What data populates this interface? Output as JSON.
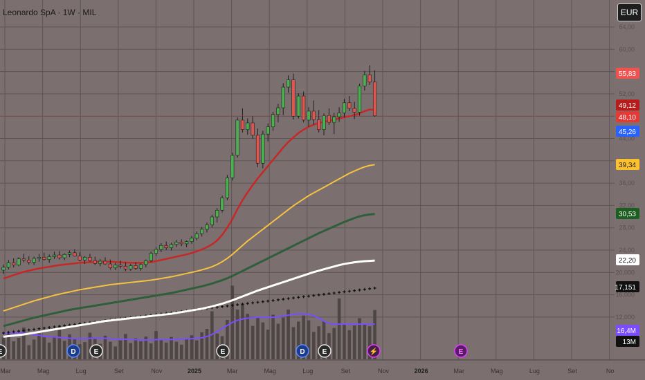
{
  "header": {
    "title": "Leonardo SpA · 1W · MIL",
    "currency": "EUR"
  },
  "chart_data": {
    "type": "candlestick",
    "y_ticks": [
      "64,00",
      "60,00",
      "56,00",
      "52,00",
      "48,00",
      "44,00",
      "40,00",
      "36,00",
      "32,00",
      "28,00",
      "24,00",
      "20,000",
      "16,000",
      "12,000"
    ],
    "x_ticks": [
      {
        "label": "Mar",
        "bold": false
      },
      {
        "label": "Mag",
        "bold": false
      },
      {
        "label": "Lug",
        "bold": false
      },
      {
        "label": "Set",
        "bold": false
      },
      {
        "label": "Nov",
        "bold": false
      },
      {
        "label": "2025",
        "bold": true
      },
      {
        "label": "Mar",
        "bold": false
      },
      {
        "label": "Mag",
        "bold": false
      },
      {
        "label": "Lug",
        "bold": false
      },
      {
        "label": "Set",
        "bold": false
      },
      {
        "label": "Nov",
        "bold": false
      },
      {
        "label": "2026",
        "bold": true
      },
      {
        "label": "Mar",
        "bold": false
      },
      {
        "label": "Mag",
        "bold": false
      },
      {
        "label": "Lug",
        "bold": false
      },
      {
        "label": "Set",
        "bold": false
      },
      {
        "label": "No",
        "bold": false
      }
    ],
    "price_tags": [
      {
        "label": "55,83",
        "bg": "#ef5350",
        "fg": "#ffffff"
      },
      {
        "label": "49,12",
        "bg": "#b71c1c",
        "fg": "#ffffff"
      },
      {
        "label": "48,10",
        "bg": "#e53935",
        "fg": "#ffffff"
      },
      {
        "label": "45,26",
        "bg": "#2962ff",
        "fg": "#ffffff"
      },
      {
        "label": "39,34",
        "bg": "#fbc02d",
        "fg": "#1a1a1a"
      },
      {
        "label": "30,53",
        "bg": "#1b5e20",
        "fg": "#ffffff"
      },
      {
        "label": "22,20",
        "bg": "#ffffff",
        "fg": "#1a1a1a"
      },
      {
        "label": "17,151",
        "bg": "#111111",
        "fg": "#ffffff"
      },
      {
        "label": "16,4M",
        "bg": "#7c4dff",
        "fg": "#ffffff"
      },
      {
        "label": "13M",
        "bg": "#111111",
        "fg": "#ffffff"
      }
    ],
    "events": [
      {
        "label": "E",
        "kind": "earnings"
      },
      {
        "label": "D",
        "kind": "dividend"
      },
      {
        "label": "E",
        "kind": "earnings"
      },
      {
        "label": "E",
        "kind": "earnings"
      },
      {
        "label": "D",
        "kind": "dividend"
      },
      {
        "label": "E",
        "kind": "earnings"
      },
      {
        "label": "⚡",
        "kind": "split"
      },
      {
        "label": "E",
        "kind": "earnings-future"
      }
    ],
    "ohlc": [
      [
        20.5,
        21.5,
        19.8,
        21.0
      ],
      [
        21.0,
        22.3,
        20.6,
        21.8
      ],
      [
        21.8,
        22.6,
        21.0,
        21.4
      ],
      [
        21.4,
        22.8,
        21.2,
        22.5
      ],
      [
        22.5,
        23.4,
        21.9,
        22.3
      ],
      [
        22.3,
        23.0,
        21.5,
        21.9
      ],
      [
        21.9,
        22.9,
        21.4,
        22.6
      ],
      [
        22.6,
        23.4,
        22.0,
        22.8
      ],
      [
        22.8,
        23.6,
        22.2,
        22.4
      ],
      [
        22.4,
        23.3,
        21.8,
        22.9
      ],
      [
        22.9,
        23.8,
        22.5,
        23.2
      ],
      [
        23.2,
        23.9,
        22.4,
        22.7
      ],
      [
        22.7,
        23.5,
        22.3,
        23.3
      ],
      [
        23.3,
        24.0,
        22.8,
        23.6
      ],
      [
        23.6,
        24.2,
        22.9,
        23.0
      ],
      [
        23.0,
        23.7,
        22.1,
        22.3
      ],
      [
        22.3,
        23.0,
        21.6,
        22.8
      ],
      [
        22.8,
        23.4,
        22.0,
        22.2
      ],
      [
        22.2,
        22.9,
        21.4,
        21.7
      ],
      [
        21.7,
        22.5,
        21.2,
        22.1
      ],
      [
        22.1,
        22.8,
        21.5,
        21.6
      ],
      [
        21.6,
        22.4,
        20.6,
        20.9
      ],
      [
        20.9,
        21.8,
        20.5,
        21.4
      ],
      [
        21.4,
        22.2,
        20.8,
        21.2
      ],
      [
        21.2,
        21.9,
        20.3,
        20.7
      ],
      [
        20.7,
        21.6,
        20.4,
        21.3
      ],
      [
        21.3,
        21.9,
        20.5,
        20.8
      ],
      [
        20.8,
        21.7,
        20.4,
        21.5
      ],
      [
        21.5,
        22.4,
        21.0,
        22.2
      ],
      [
        22.2,
        23.8,
        21.9,
        23.5
      ],
      [
        23.5,
        24.6,
        23.0,
        24.2
      ],
      [
        24.2,
        25.3,
        23.7,
        24.9
      ],
      [
        24.9,
        25.6,
        24.1,
        24.5
      ],
      [
        24.5,
        25.4,
        24.0,
        25.1
      ],
      [
        25.1,
        25.9,
        24.6,
        25.5
      ],
      [
        25.5,
        26.0,
        24.8,
        25.2
      ],
      [
        25.2,
        25.8,
        24.6,
        25.6
      ],
      [
        25.6,
        26.6,
        25.2,
        26.2
      ],
      [
        26.2,
        27.4,
        25.8,
        27.0
      ],
      [
        27.0,
        28.2,
        26.5,
        27.8
      ],
      [
        27.8,
        29.0,
        27.2,
        28.6
      ],
      [
        28.6,
        30.4,
        28.1,
        30.0
      ],
      [
        30.0,
        31.6,
        29.0,
        31.2
      ],
      [
        31.2,
        33.8,
        30.8,
        33.4
      ],
      [
        33.4,
        37.5,
        33.0,
        37.0
      ],
      [
        37.0,
        41.5,
        36.5,
        41.0
      ],
      [
        41.0,
        47.8,
        40.6,
        47.3
      ],
      [
        47.3,
        49.4,
        45.1,
        45.6
      ],
      [
        45.6,
        47.6,
        44.7,
        46.8
      ],
      [
        46.8,
        48.0,
        44.0,
        44.6
      ],
      [
        44.6,
        45.8,
        38.9,
        39.6
      ],
      [
        39.6,
        45.4,
        38.7,
        44.8
      ],
      [
        44.8,
        46.7,
        43.5,
        46.1
      ],
      [
        46.1,
        48.8,
        45.4,
        48.3
      ],
      [
        48.3,
        50.2,
        46.9,
        49.5
      ],
      [
        49.5,
        53.9,
        48.2,
        53.2
      ],
      [
        53.2,
        55.3,
        52.2,
        54.5
      ],
      [
        54.5,
        55.6,
        47.4,
        48.0
      ],
      [
        48.0,
        52.1,
        47.6,
        51.6
      ],
      [
        51.6,
        52.4,
        46.9,
        47.3
      ],
      [
        47.3,
        49.6,
        46.1,
        48.9
      ],
      [
        48.9,
        50.8,
        46.5,
        47.4
      ],
      [
        47.4,
        49.1,
        45.1,
        45.6
      ],
      [
        45.6,
        48.5,
        44.6,
        48.1
      ],
      [
        48.1,
        49.4,
        46.4,
        46.9
      ],
      [
        46.9,
        48.6,
        44.8,
        47.9
      ],
      [
        47.9,
        49.6,
        47.0,
        48.6
      ],
      [
        48.6,
        51.1,
        47.8,
        50.4
      ],
      [
        50.4,
        51.6,
        48.9,
        49.4
      ],
      [
        49.4,
        50.6,
        47.5,
        48.7
      ],
      [
        48.7,
        53.8,
        48.1,
        53.4
      ],
      [
        53.4,
        56.1,
        52.6,
        55.4
      ],
      [
        55.4,
        57.1,
        53.6,
        54.1
      ],
      [
        54.1,
        56.2,
        47.9,
        48.1
      ]
    ],
    "volume_m": [
      5.1,
      6.3,
      4.2,
      5.0,
      7.4,
      3.3,
      4.6,
      6.0,
      5.1,
      3.9,
      5.4,
      7.6,
      4.3,
      5.8,
      4.9,
      3.5,
      4.0,
      6.2,
      4.8,
      3.6,
      5.5,
      4.1,
      3.0,
      4.4,
      5.9,
      3.8,
      4.9,
      4.2,
      5.3,
      3.7,
      6.6,
      4.5,
      3.9,
      5.2,
      4.1,
      3.4,
      4.8,
      5.6,
      4.4,
      6.3,
      7.1,
      11.2,
      6.0,
      5.4,
      9.2,
      17.2,
      11.6,
      12.9,
      10.6,
      7.8,
      9.9,
      8.6,
      6.9,
      10.4,
      8.3,
      9.7,
      11.6,
      7.5,
      8.8,
      10.2,
      9.1,
      6.4,
      7.7,
      8.9,
      6.1,
      7.3,
      14.2,
      8.1,
      6.8,
      7.9,
      9.6,
      8.3,
      7.7,
      11.5
    ],
    "ma_red": [
      19.0,
      19.3,
      19.6,
      19.9,
      20.2,
      20.4,
      20.6,
      20.8,
      20.95,
      21.1,
      21.25,
      21.4,
      21.5,
      21.6,
      21.7,
      21.8,
      21.85,
      21.9,
      21.95,
      22.0,
      22.0,
      22.0,
      21.95,
      21.9,
      21.85,
      21.8,
      21.8,
      21.8,
      21.85,
      21.95,
      22.1,
      22.3,
      22.5,
      22.7,
      22.9,
      23.1,
      23.3,
      23.55,
      23.85,
      24.2,
      24.6,
      25.1,
      25.8,
      26.8,
      28.1,
      29.6,
      31.4,
      33.0,
      34.4,
      35.7,
      36.9,
      38.0,
      39.1,
      40.2,
      41.3,
      42.4,
      43.4,
      44.2,
      45.0,
      45.6,
      46.1,
      46.5,
      46.8,
      47.0,
      47.2,
      47.4,
      47.6,
      47.8,
      48.0,
      48.2,
      48.5,
      48.9,
      49.2,
      49.12
    ],
    "ma_yellow": [
      13.2,
      13.5,
      13.8,
      14.1,
      14.4,
      14.7,
      15.0,
      15.25,
      15.5,
      15.75,
      16.0,
      16.2,
      16.4,
      16.6,
      16.8,
      17.0,
      17.15,
      17.3,
      17.45,
      17.6,
      17.75,
      17.9,
      18.0,
      18.1,
      18.2,
      18.3,
      18.4,
      18.5,
      18.6,
      18.7,
      18.85,
      19.0,
      19.15,
      19.3,
      19.5,
      19.7,
      19.9,
      20.1,
      20.3,
      20.55,
      20.8,
      21.1,
      21.5,
      22.0,
      22.6,
      23.3,
      24.1,
      24.9,
      25.7,
      26.4,
      27.1,
      27.8,
      28.5,
      29.2,
      29.9,
      30.6,
      31.3,
      32.0,
      32.6,
      33.2,
      33.8,
      34.3,
      34.8,
      35.3,
      35.8,
      36.3,
      36.8,
      37.3,
      37.8,
      38.2,
      38.6,
      38.95,
      39.2,
      39.34
    ],
    "ma_green": [
      10.5,
      10.75,
      11.0,
      11.25,
      11.5,
      11.75,
      12.0,
      12.2,
      12.4,
      12.6,
      12.8,
      13.0,
      13.2,
      13.4,
      13.55,
      13.7,
      13.85,
      14.0,
      14.15,
      14.3,
      14.45,
      14.6,
      14.75,
      14.9,
      15.05,
      15.2,
      15.35,
      15.5,
      15.65,
      15.8,
      15.95,
      16.1,
      16.25,
      16.4,
      16.6,
      16.8,
      17.0,
      17.2,
      17.4,
      17.6,
      17.85,
      18.1,
      18.4,
      18.7,
      19.05,
      19.45,
      19.9,
      20.35,
      20.8,
      21.25,
      21.7,
      22.15,
      22.6,
      23.05,
      23.5,
      23.95,
      24.4,
      24.85,
      25.3,
      25.75,
      26.2,
      26.65,
      27.1,
      27.5,
      27.9,
      28.3,
      28.7,
      29.1,
      29.45,
      29.8,
      30.1,
      30.3,
      30.45,
      30.53
    ],
    "ma_white": [
      8.6,
      8.7,
      8.8,
      8.9,
      9.0,
      9.15,
      9.3,
      9.45,
      9.6,
      9.75,
      9.9,
      10.05,
      10.2,
      10.35,
      10.5,
      10.65,
      10.8,
      10.95,
      11.1,
      11.25,
      11.4,
      11.5,
      11.6,
      11.7,
      11.8,
      11.9,
      12.0,
      12.1,
      12.2,
      12.3,
      12.4,
      12.5,
      12.6,
      12.7,
      12.85,
      13.0,
      13.15,
      13.3,
      13.45,
      13.6,
      13.8,
      14.0,
      14.25,
      14.5,
      14.8,
      15.1,
      15.45,
      15.8,
      16.15,
      16.5,
      16.85,
      17.15,
      17.45,
      17.75,
      18.05,
      18.35,
      18.65,
      18.95,
      19.25,
      19.55,
      19.85,
      20.15,
      20.4,
      20.65,
      20.9,
      21.15,
      21.4,
      21.6,
      21.75,
      21.9,
      22.0,
      22.1,
      22.15,
      22.2
    ],
    "vol_ma": [
      6.0,
      6.1,
      6.1,
      6.2,
      6.1,
      5.9,
      5.7,
      5.6,
      5.4,
      5.3,
      5.2,
      5.1,
      5.0,
      4.9,
      4.8,
      4.8,
      4.8,
      4.9,
      4.9,
      4.9,
      4.9,
      4.8,
      4.7,
      4.7,
      4.7,
      4.6,
      4.6,
      4.5,
      4.5,
      4.5,
      4.6,
      4.6,
      4.6,
      4.6,
      4.7,
      4.7,
      4.8,
      4.8,
      4.9,
      5.0,
      5.3,
      5.8,
      6.5,
      7.2,
      7.9,
      8.6,
      9.1,
      9.4,
      9.6,
      9.7,
      9.8,
      9.8,
      9.8,
      9.8,
      9.9,
      10.1,
      10.3,
      10.5,
      10.6,
      10.6,
      10.5,
      10.2,
      9.6,
      8.9,
      8.4,
      8.2,
      8.2,
      8.2,
      8.2,
      8.2,
      8.2,
      8.2,
      8.2,
      8.2
    ]
  }
}
